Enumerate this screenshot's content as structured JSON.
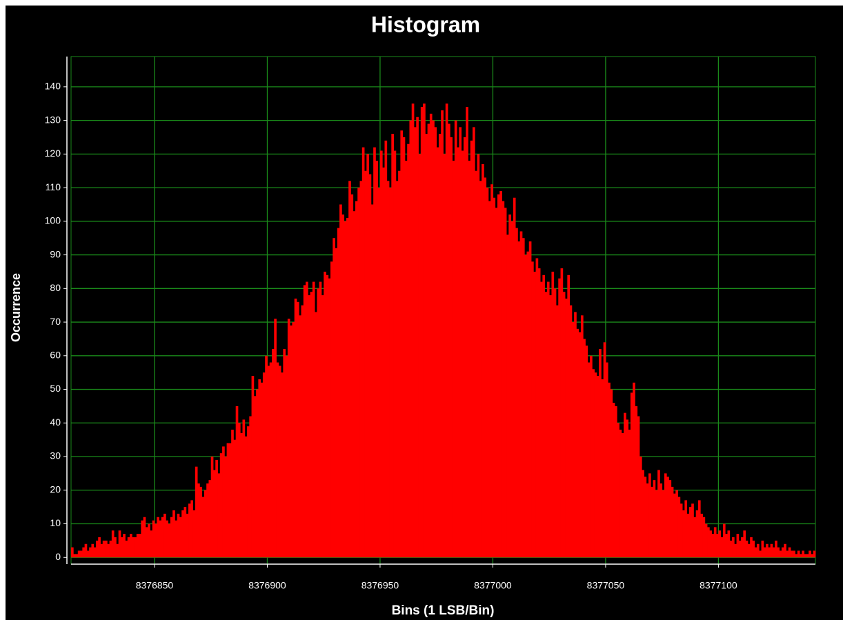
{
  "chart_data": {
    "type": "histogram",
    "title": "Histogram",
    "xlabel": "Bins (1 LSB/Bin)",
    "ylabel": "Occurrence",
    "color": "#ff0000",
    "grid": true,
    "xlim": [
      8376813,
      8377143
    ],
    "xticks": [
      8376850,
      8376900,
      8376950,
      8377000,
      8377050,
      8377100
    ],
    "ylim": [
      -2,
      149
    ],
    "yticks": [
      0,
      10,
      20,
      30,
      40,
      50,
      60,
      70,
      80,
      90,
      100,
      110,
      120,
      130,
      140
    ],
    "bins": [
      8376813,
      8376814,
      8376815,
      8376816,
      8376817,
      8376818,
      8376819,
      8376820,
      8376821,
      8376822,
      8376823,
      8376824,
      8376825,
      8376826,
      8376827,
      8376828,
      8376829,
      8376830,
      8376831,
      8376832,
      8376833,
      8376834,
      8376835,
      8376836,
      8376837,
      8376838,
      8376839,
      8376840,
      8376841,
      8376842,
      8376843,
      8376844,
      8376845,
      8376846,
      8376847,
      8376848,
      8376849,
      8376850,
      8376851,
      8376852,
      8376853,
      8376854,
      8376855,
      8376856,
      8376857,
      8376858,
      8376859,
      8376860,
      8376861,
      8376862,
      8376863,
      8376864,
      8376865,
      8376866,
      8376867,
      8376868,
      8376869,
      8376870,
      8376871,
      8376872,
      8376873,
      8376874,
      8376875,
      8376876,
      8376877,
      8376878,
      8376879,
      8376880,
      8376881,
      8376882,
      8376883,
      8376884,
      8376885,
      8376886,
      8376887,
      8376888,
      8376889,
      8376890,
      8376891,
      8376892,
      8376893,
      8376894,
      8376895,
      8376896,
      8376897,
      8376898,
      8376899,
      8376900,
      8376901,
      8376902,
      8376903,
      8376904,
      8376905,
      8376906,
      8376907,
      8376908,
      8376909,
      8376910,
      8376911,
      8376912,
      8376913,
      8376914,
      8376915,
      8376916,
      8376917,
      8376918,
      8376919,
      8376920,
      8376921,
      8376922,
      8376923,
      8376924,
      8376925,
      8376926,
      8376927,
      8376928,
      8376929,
      8376930,
      8376931,
      8376932,
      8376933,
      8376934,
      8376935,
      8376936,
      8376937,
      8376938,
      8376939,
      8376940,
      8376941,
      8376942,
      8376943,
      8376944,
      8376945,
      8376946,
      8376947,
      8376948,
      8376949,
      8376950,
      8376951,
      8376952,
      8376953,
      8376954,
      8376955,
      8376956,
      8376957,
      8376958,
      8376959,
      8376960,
      8376961,
      8376962,
      8376963,
      8376964,
      8376965,
      8376966,
      8376967,
      8376968,
      8376969,
      8376970,
      8376971,
      8376972,
      8376973,
      8376974,
      8376975,
      8376976,
      8376977,
      8376978,
      8376979,
      8376980,
      8376981,
      8376982,
      8376983,
      8376984,
      8376985,
      8376986,
      8376987,
      8376988,
      8376989,
      8376990,
      8376991,
      8376992,
      8376993,
      8376994,
      8376995,
      8376996,
      8376997,
      8376998,
      8376999,
      8377000,
      8377001,
      8377002,
      8377003,
      8377004,
      8377005,
      8377006,
      8377007,
      8377008,
      8377009,
      8377010,
      8377011,
      8377012,
      8377013,
      8377014,
      8377015,
      8377016,
      8377017,
      8377018,
      8377019,
      8377020,
      8377021,
      8377022,
      8377023,
      8377024,
      8377025,
      8377026,
      8377027,
      8377028,
      8377029,
      8377030,
      8377031,
      8377032,
      8377033,
      8377034,
      8377035,
      8377036,
      8377037,
      8377038,
      8377039,
      8377040,
      8377041,
      8377042,
      8377043,
      8377044,
      8377045,
      8377046,
      8377047,
      8377048,
      8377049,
      8377050,
      8377051,
      8377052,
      8377053,
      8377054,
      8377055,
      8377056,
      8377057,
      8377058,
      8377059,
      8377060,
      8377061,
      8377062,
      8377063,
      8377064,
      8377065,
      8377066,
      8377067,
      8377068,
      8377069,
      8377070,
      8377071,
      8377072,
      8377073,
      8377074,
      8377075,
      8377076,
      8377077,
      8377078,
      8377079,
      8377080,
      8377081,
      8377082,
      8377083,
      8377084,
      8377085,
      8377086,
      8377087,
      8377088,
      8377089,
      8377090,
      8377091,
      8377092,
      8377093,
      8377094,
      8377095,
      8377096,
      8377097,
      8377098,
      8377099,
      8377100,
      8377101,
      8377102,
      8377103,
      8377104,
      8377105,
      8377106,
      8377107,
      8377108,
      8377109,
      8377110,
      8377111,
      8377112,
      8377113,
      8377114,
      8377115,
      8377116,
      8377117,
      8377118,
      8377119,
      8377120,
      8377121,
      8377122,
      8377123,
      8377124,
      8377125,
      8377126,
      8377127,
      8377128,
      8377129,
      8377130,
      8377131,
      8377132,
      8377133,
      8377134,
      8377135,
      8377136,
      8377137,
      8377138,
      8377139,
      8377140,
      8377141,
      8377142,
      8377143
    ],
    "values": [
      3,
      1,
      1,
      2,
      2,
      3,
      4,
      2,
      3,
      4,
      3,
      5,
      6,
      4,
      5,
      5,
      4,
      5,
      8,
      6,
      4,
      8,
      6,
      7,
      5,
      6,
      7,
      6,
      6,
      7,
      7,
      11,
      12,
      9,
      10,
      8,
      11,
      10,
      12,
      11,
      12,
      13,
      11,
      10,
      12,
      14,
      11,
      13,
      12,
      14,
      15,
      13,
      16,
      17,
      14,
      27,
      22,
      21,
      18,
      20,
      22,
      23,
      30,
      26,
      29,
      25,
      31,
      33,
      30,
      34,
      34,
      38,
      35,
      45,
      40,
      37,
      41,
      36,
      39,
      42,
      54,
      48,
      50,
      53,
      52,
      55,
      60,
      57,
      58,
      62,
      71,
      58,
      57,
      55,
      62,
      60,
      71,
      69,
      70,
      77,
      76,
      72,
      75,
      81,
      82,
      78,
      79,
      82,
      73,
      80,
      82,
      78,
      85,
      84,
      83,
      88,
      95,
      92,
      98,
      105,
      102,
      100,
      101,
      112,
      108,
      103,
      106,
      110,
      112,
      122,
      115,
      120,
      114,
      105,
      122,
      118,
      110,
      121,
      116,
      124,
      112,
      110,
      126,
      121,
      112,
      115,
      127,
      125,
      118,
      123,
      130,
      135,
      128,
      131,
      120,
      134,
      135,
      126,
      129,
      132,
      130,
      128,
      122,
      126,
      133,
      120,
      135,
      129,
      125,
      118,
      130,
      122,
      128,
      121,
      125,
      134,
      118,
      124,
      128,
      115,
      120,
      112,
      117,
      113,
      110,
      106,
      111,
      107,
      104,
      108,
      109,
      106,
      104,
      96,
      102,
      100,
      107,
      98,
      94,
      97,
      95,
      90,
      91,
      94,
      88,
      85,
      89,
      86,
      82,
      84,
      79,
      82,
      78,
      85,
      80,
      75,
      83,
      86,
      79,
      77,
      84,
      75,
      70,
      73,
      68,
      67,
      72,
      65,
      63,
      58,
      60,
      56,
      55,
      54,
      62,
      53,
      64,
      58,
      52,
      50,
      46,
      45,
      40,
      38,
      37,
      43,
      41,
      38,
      49,
      52,
      45,
      42,
      30,
      26,
      24,
      22,
      25,
      21,
      23,
      20,
      26,
      22,
      20,
      25,
      24,
      23,
      21,
      19,
      20,
      18,
      16,
      14,
      17,
      13,
      15,
      16,
      12,
      14,
      17,
      13,
      12,
      10,
      9,
      8,
      7,
      9,
      7,
      8,
      6,
      10,
      7,
      8,
      5,
      6,
      4,
      7,
      5,
      6,
      8,
      5,
      4,
      6,
      5,
      3,
      4,
      2,
      5,
      3,
      4,
      3,
      4,
      3,
      5,
      3,
      2,
      3,
      4,
      2,
      3,
      2,
      2,
      1,
      2,
      1,
      2,
      1,
      1,
      2,
      1,
      2
    ]
  }
}
